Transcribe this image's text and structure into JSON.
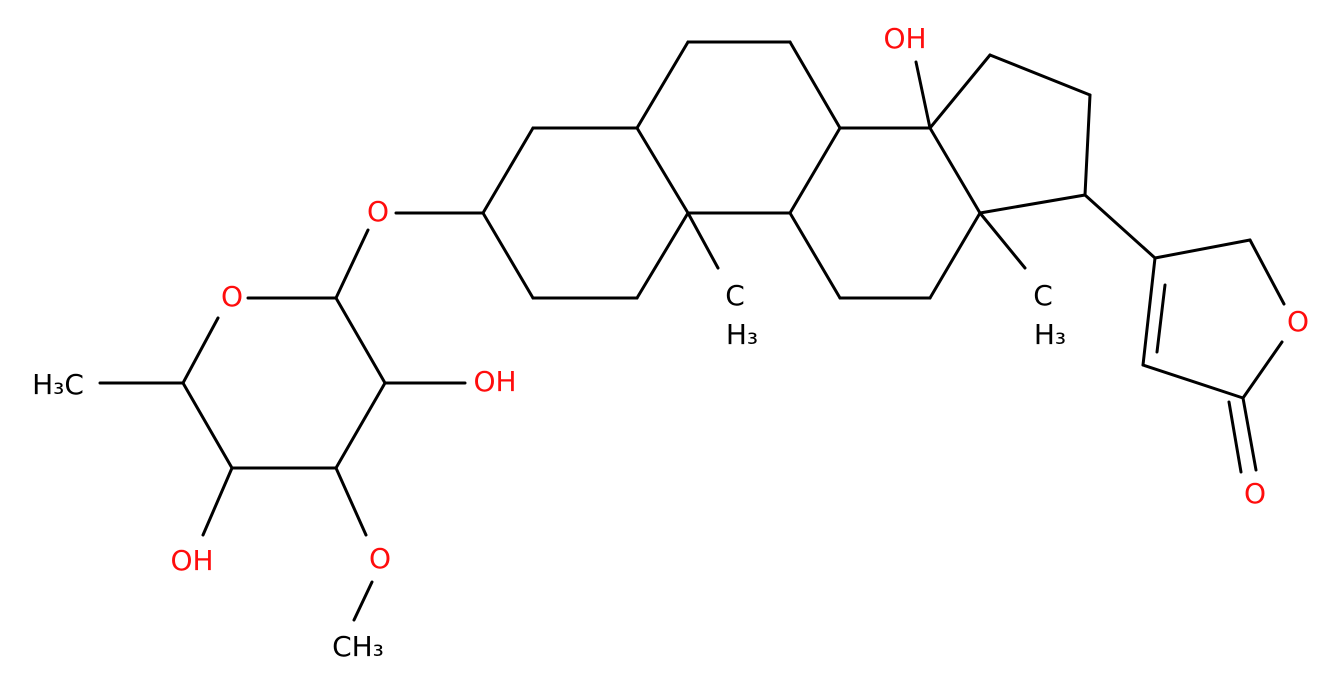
{
  "labels": [
    "OH",
    "O",
    "O",
    "H₃C",
    "OH",
    "OH",
    "O",
    "CH₃",
    "C",
    "H₃",
    "C",
    "H₃",
    "O",
    "O"
  ]
}
